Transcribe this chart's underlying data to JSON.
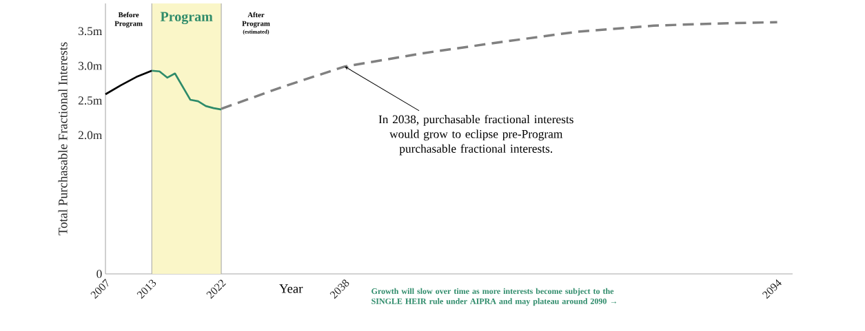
{
  "chart_data": {
    "type": "line",
    "xlabel": "Year",
    "ylabel": "Total Purchasable Fractional Interests",
    "xlim": [
      2007,
      2096
    ],
    "ylim": [
      0,
      3.9
    ],
    "xticks": [
      2007,
      2013,
      2022,
      2038,
      2094
    ],
    "yticks": [
      0,
      {
        "value": 2.0,
        "label": "2.0m"
      },
      {
        "value": 2.5,
        "label": "2.5m"
      },
      {
        "value": 3.0,
        "label": "3.0m"
      },
      {
        "value": 3.5,
        "label": "3.5m"
      }
    ],
    "series": [
      {
        "color": "#000000",
        "x": [
          2007,
          2009,
          2011,
          2013
        ],
        "values": [
          2.59,
          2.72,
          2.84,
          2.93
        ]
      },
      {
        "color": "#2e8b6a",
        "x": [
          2013,
          2014,
          2015,
          2016,
          2018,
          2019,
          2020,
          2021,
          2022
        ],
        "values": [
          2.93,
          2.92,
          2.83,
          2.89,
          2.51,
          2.49,
          2.42,
          2.39,
          2.37
        ]
      },
      {
        "color": "#808080",
        "line_style": "dashed",
        "x": [
          2022,
          2030,
          2038,
          2048,
          2058,
          2068,
          2078,
          2086,
          2094
        ],
        "values": [
          2.38,
          2.7,
          2.99,
          3.18,
          3.34,
          3.49,
          3.58,
          3.61,
          3.63
        ]
      }
    ],
    "bands": [
      {
        "axis": "x",
        "from": 2013,
        "to": 2022,
        "label": "Program",
        "color": "#faf6c8"
      }
    ],
    "annotations": [
      "Before Program",
      "After Program",
      "(estimated)",
      {
        "text": "In 2038, purchasable fractional interests would grow to eclipse pre-Program purchasable fractional interests.",
        "x": 2038,
        "y": 2.99
      },
      "Growth will slow over time as more interests become subject to the SINGLE HEIR rule under AIPRA and may plateau around 2090 →"
    ]
  }
}
